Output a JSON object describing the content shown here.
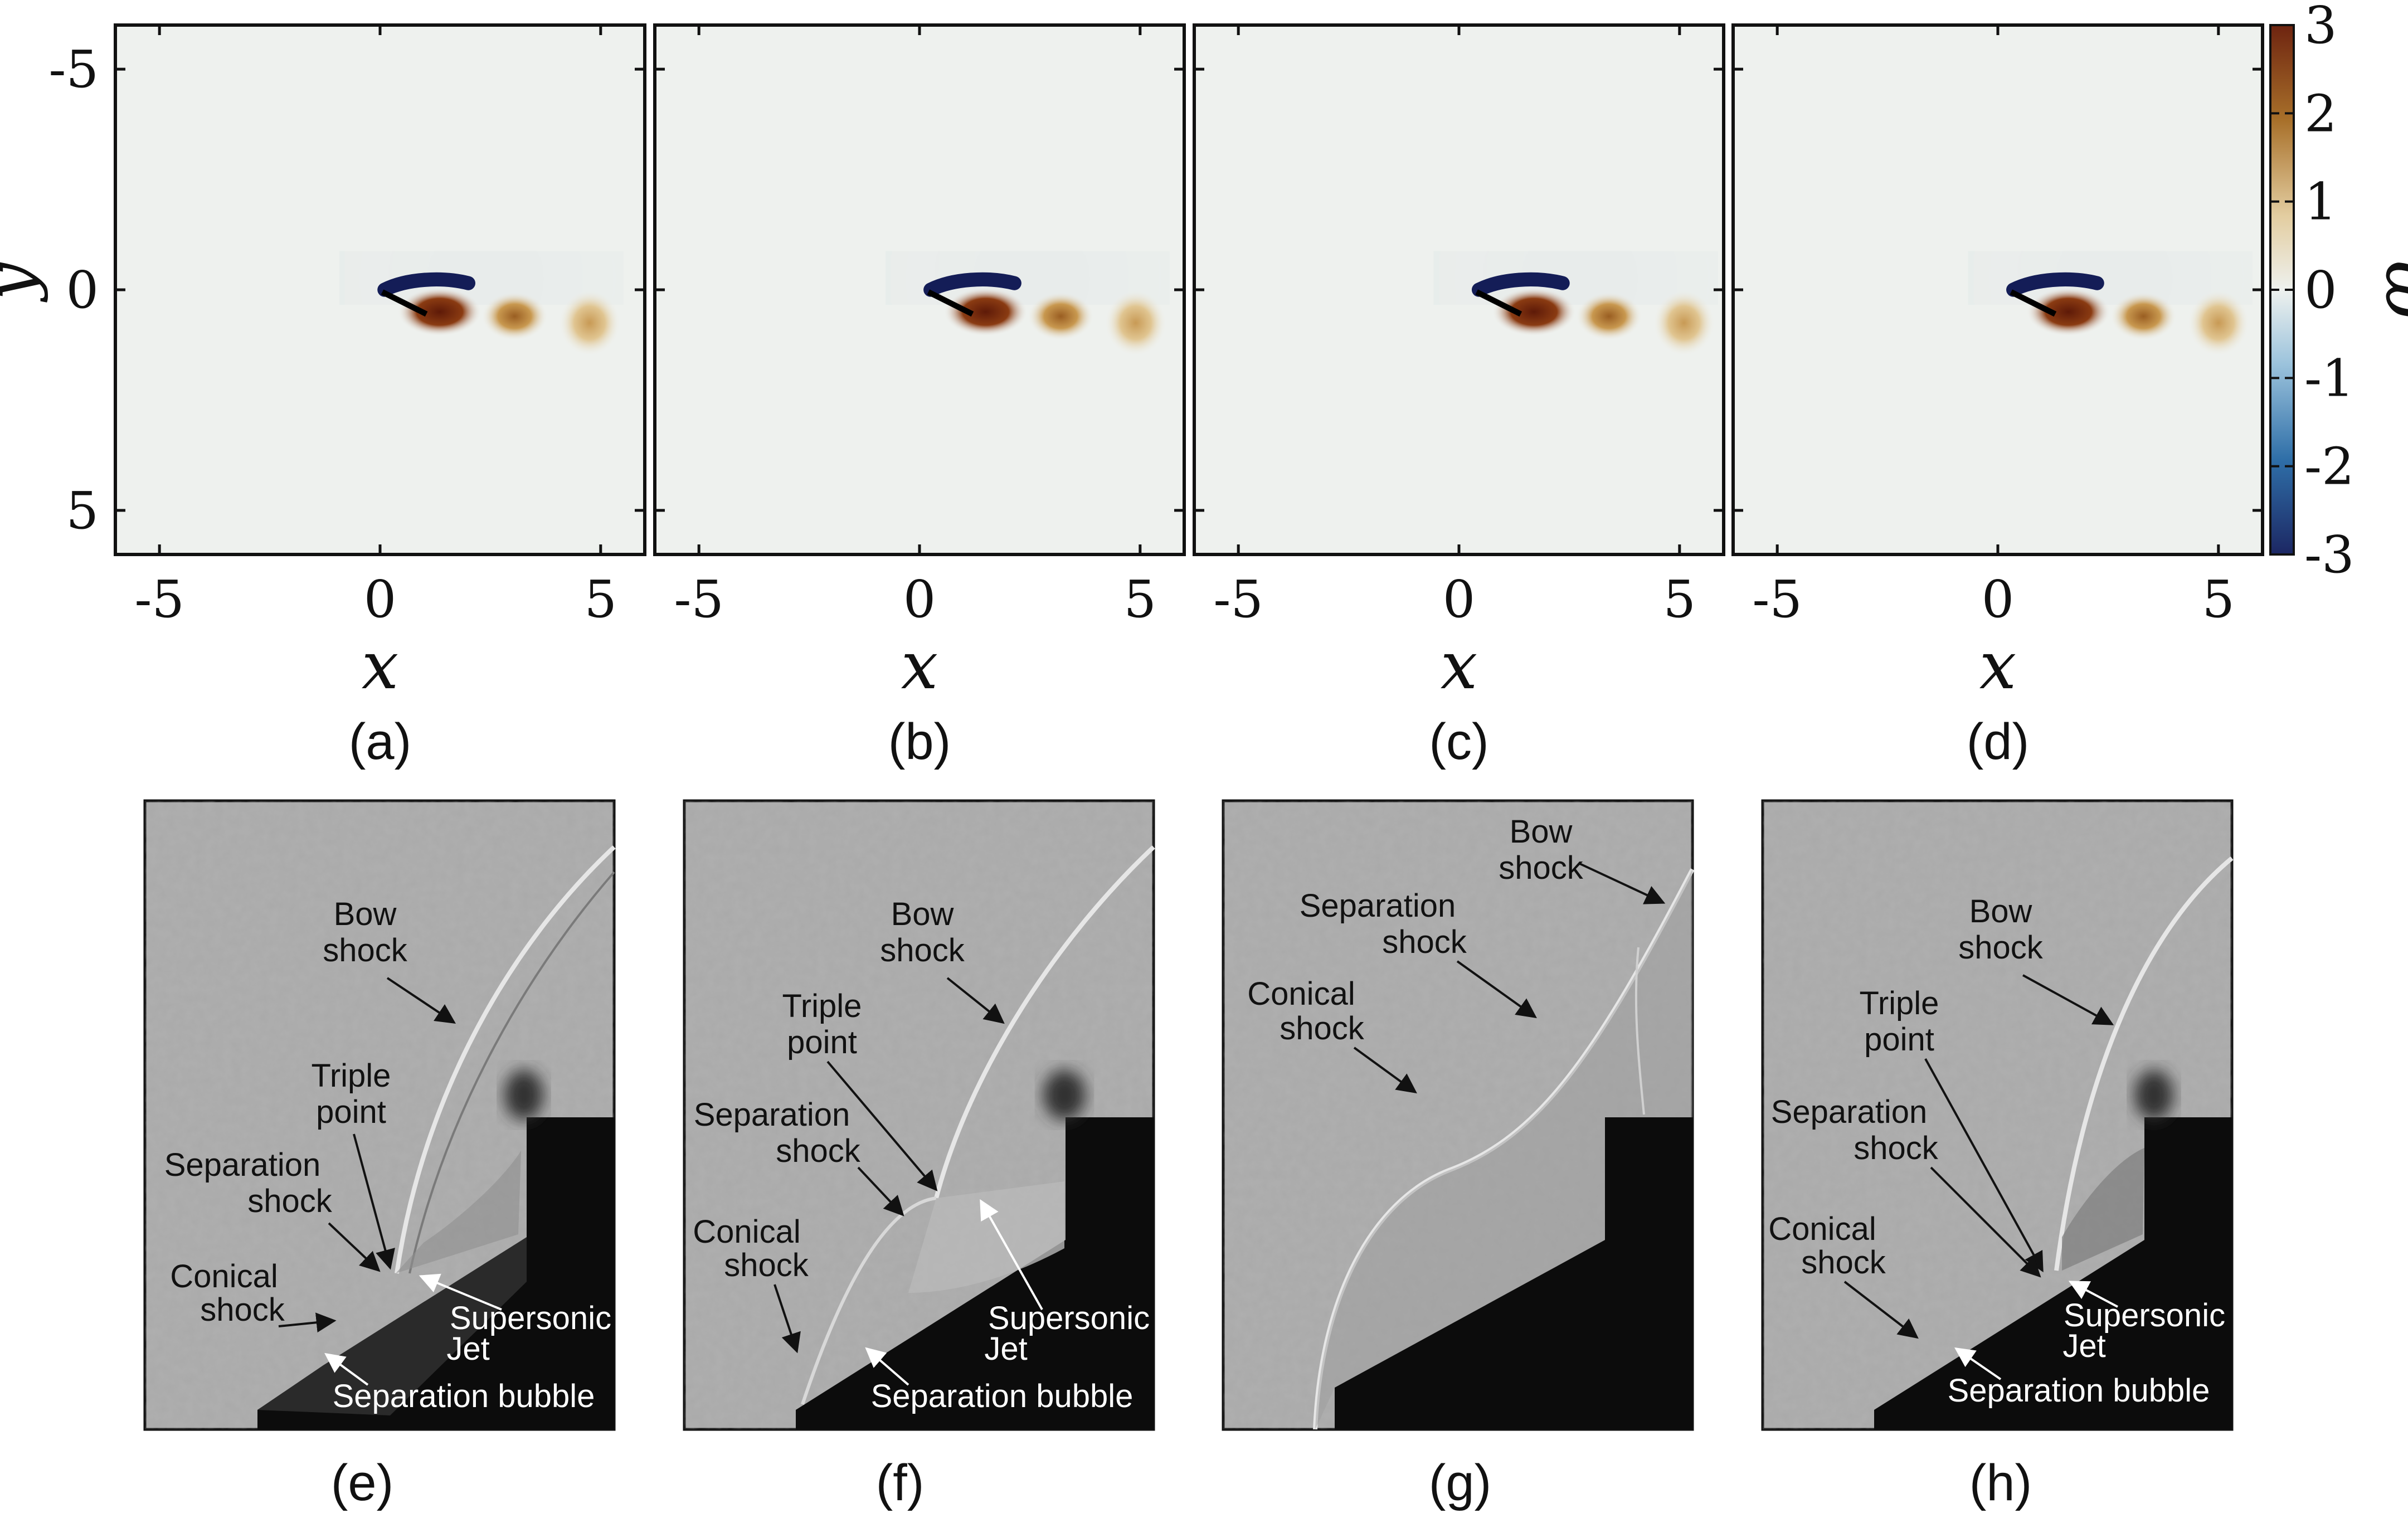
{
  "colorbar": {
    "label": "ω",
    "ticks": [
      "3",
      "2",
      "1",
      "0",
      "-1",
      "-2",
      "-3"
    ],
    "colors": [
      "#1c2763",
      "#2f6fa8",
      "#9cc3dc",
      "#eef1ee",
      "#e3cda0",
      "#a8702a",
      "#6e2410"
    ]
  },
  "panels_top": [
    {
      "caption": "(a)",
      "xlabel": "x",
      "ylabel": "y",
      "xticks": [
        "-5",
        "0",
        "5"
      ],
      "yticks": [
        "5",
        "0",
        "-5"
      ]
    },
    {
      "caption": "(b)",
      "xlabel": "x",
      "xticks": [
        "-5",
        "0",
        "5"
      ]
    },
    {
      "caption": "(c)",
      "xlabel": "x",
      "xticks": [
        "-5",
        "0",
        "5"
      ]
    },
    {
      "caption": "(d)",
      "xlabel": "x",
      "xticks": [
        "-5",
        "0",
        "5"
      ]
    }
  ],
  "panels_bottom": [
    {
      "caption": "(e)",
      "labels": [
        "Bow",
        "shock",
        "Triple",
        "point",
        "Separation",
        "shock",
        "Conical",
        "shock",
        "Supersonic",
        "Jet",
        "Separation bubble"
      ]
    },
    {
      "caption": "(f)",
      "labels": [
        "Bow",
        "shock",
        "Triple",
        "point",
        "Separation",
        "shock",
        "Conical",
        "shock",
        "Supersonic",
        "Jet",
        "Separation bubble"
      ]
    },
    {
      "caption": "(g)",
      "labels": [
        "Bow",
        "shock",
        "Separation",
        "shock",
        "Conical",
        "shock"
      ]
    },
    {
      "caption": "(h)",
      "labels": [
        "Bow",
        "shock",
        "Triple",
        "point",
        "Separation",
        "shock",
        "Conical",
        "shock",
        "Supersonic",
        "Jet",
        "Separation bubble"
      ]
    }
  ]
}
